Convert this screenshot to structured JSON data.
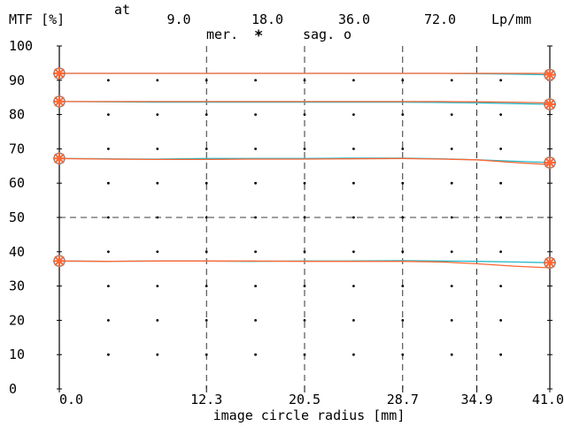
{
  "header": {
    "ylabel": "MTF [%]",
    "at_label": "at",
    "freq_values": [
      "9.0",
      "18.0",
      "36.0",
      "72.0"
    ],
    "freq_unit": "Lp/mm",
    "legend_mer": "mer.",
    "legend_mer_marker": "*",
    "legend_sag": "sag.",
    "legend_sag_marker": "o"
  },
  "chart_data": {
    "type": "line",
    "ylabel": "MTF [%]",
    "xlabel": "image circle radius [mm]",
    "xlim": [
      0,
      41.0
    ],
    "ylim": [
      0,
      100
    ],
    "x_ticks": [
      {
        "value": 0.0,
        "label": "0.0"
      },
      {
        "value": 12.3,
        "label": "12.3"
      },
      {
        "value": 20.5,
        "label": "20.5"
      },
      {
        "value": 28.7,
        "label": "28.7"
      },
      {
        "value": 34.9,
        "label": "34.9"
      },
      {
        "value": 41.0,
        "label": "41.0"
      }
    ],
    "y_ticks": [
      {
        "value": 0,
        "label": "0"
      },
      {
        "value": 10,
        "label": "10"
      },
      {
        "value": 20,
        "label": "20"
      },
      {
        "value": 30,
        "label": "30"
      },
      {
        "value": 40,
        "label": "40"
      },
      {
        "value": 50,
        "label": "50"
      },
      {
        "value": 60,
        "label": "60"
      },
      {
        "value": 70,
        "label": "70"
      },
      {
        "value": 80,
        "label": "80"
      },
      {
        "value": 90,
        "label": "90"
      },
      {
        "value": 100,
        "label": "100"
      }
    ],
    "grid": "dotted",
    "colors": {
      "meridional": "#ff6633",
      "sagittal": "#22b8c8",
      "axes": "#000000",
      "grid": "#000000"
    },
    "series": [
      {
        "frequency": "9.0",
        "orientation": "sagittal",
        "x": [
          0,
          4,
          8,
          12.3,
          16,
          20.5,
          24,
          28.7,
          32,
          34.9,
          38,
          41.0
        ],
        "values": [
          92.0,
          92.0,
          92.0,
          92.0,
          92.0,
          92.0,
          92.0,
          92.0,
          92.0,
          91.9,
          91.8,
          91.6
        ]
      },
      {
        "frequency": "9.0",
        "orientation": "meridional",
        "x": [
          0,
          4,
          8,
          12.3,
          16,
          20.5,
          24,
          28.7,
          32,
          34.9,
          38,
          41.0
        ],
        "values": [
          92.0,
          92.0,
          92.0,
          92.0,
          92.0,
          92.0,
          92.0,
          92.0,
          92.0,
          92.0,
          92.0,
          92.0
        ]
      },
      {
        "frequency": "18.0",
        "orientation": "sagittal",
        "x": [
          0,
          4,
          8,
          12.3,
          16,
          20.5,
          24,
          28.7,
          32,
          34.9,
          38,
          41.0
        ],
        "values": [
          83.8,
          83.7,
          83.6,
          83.6,
          83.6,
          83.6,
          83.6,
          83.6,
          83.5,
          83.4,
          83.2,
          83.0
        ]
      },
      {
        "frequency": "18.0",
        "orientation": "meridional",
        "x": [
          0,
          4,
          8,
          12.3,
          16,
          20.5,
          24,
          28.7,
          32,
          34.9,
          38,
          41.0
        ],
        "values": [
          83.8,
          83.8,
          83.8,
          83.8,
          83.8,
          83.8,
          83.8,
          83.8,
          83.8,
          83.7,
          83.6,
          83.4
        ]
      },
      {
        "frequency": "36.0",
        "orientation": "sagittal",
        "x": [
          0,
          4,
          8,
          12.3,
          16,
          20.5,
          24,
          28.7,
          32,
          34.9,
          38,
          41.0
        ],
        "values": [
          67.2,
          67.1,
          67.0,
          67.2,
          67.2,
          67.2,
          67.3,
          67.3,
          67.1,
          66.8,
          66.4,
          66.0
        ]
      },
      {
        "frequency": "36.0",
        "orientation": "meridional",
        "x": [
          0,
          4,
          8,
          12.3,
          16,
          20.5,
          24,
          28.7,
          32,
          34.9,
          38,
          41.0
        ],
        "values": [
          67.2,
          67.0,
          66.9,
          66.9,
          67.0,
          67.0,
          67.1,
          67.2,
          67.0,
          66.8,
          66.0,
          65.4
        ]
      },
      {
        "frequency": "72.0",
        "orientation": "sagittal",
        "x": [
          0,
          4,
          8,
          12.3,
          16,
          20.5,
          24,
          28.7,
          32,
          34.9,
          38,
          41.0
        ],
        "values": [
          37.3,
          37.2,
          37.3,
          37.3,
          37.2,
          37.3,
          37.3,
          37.4,
          37.3,
          37.2,
          37.0,
          36.8
        ]
      },
      {
        "frequency": "72.0",
        "orientation": "meridional",
        "x": [
          0,
          4,
          8,
          12.3,
          16,
          20.5,
          24,
          28.7,
          32,
          34.9,
          38,
          41.0
        ],
        "values": [
          37.3,
          37.2,
          37.3,
          37.3,
          37.3,
          37.2,
          37.2,
          37.2,
          37.0,
          36.5,
          35.8,
          35.3
        ]
      }
    ],
    "end_markers_at_x": [
      0,
      41.0
    ]
  }
}
